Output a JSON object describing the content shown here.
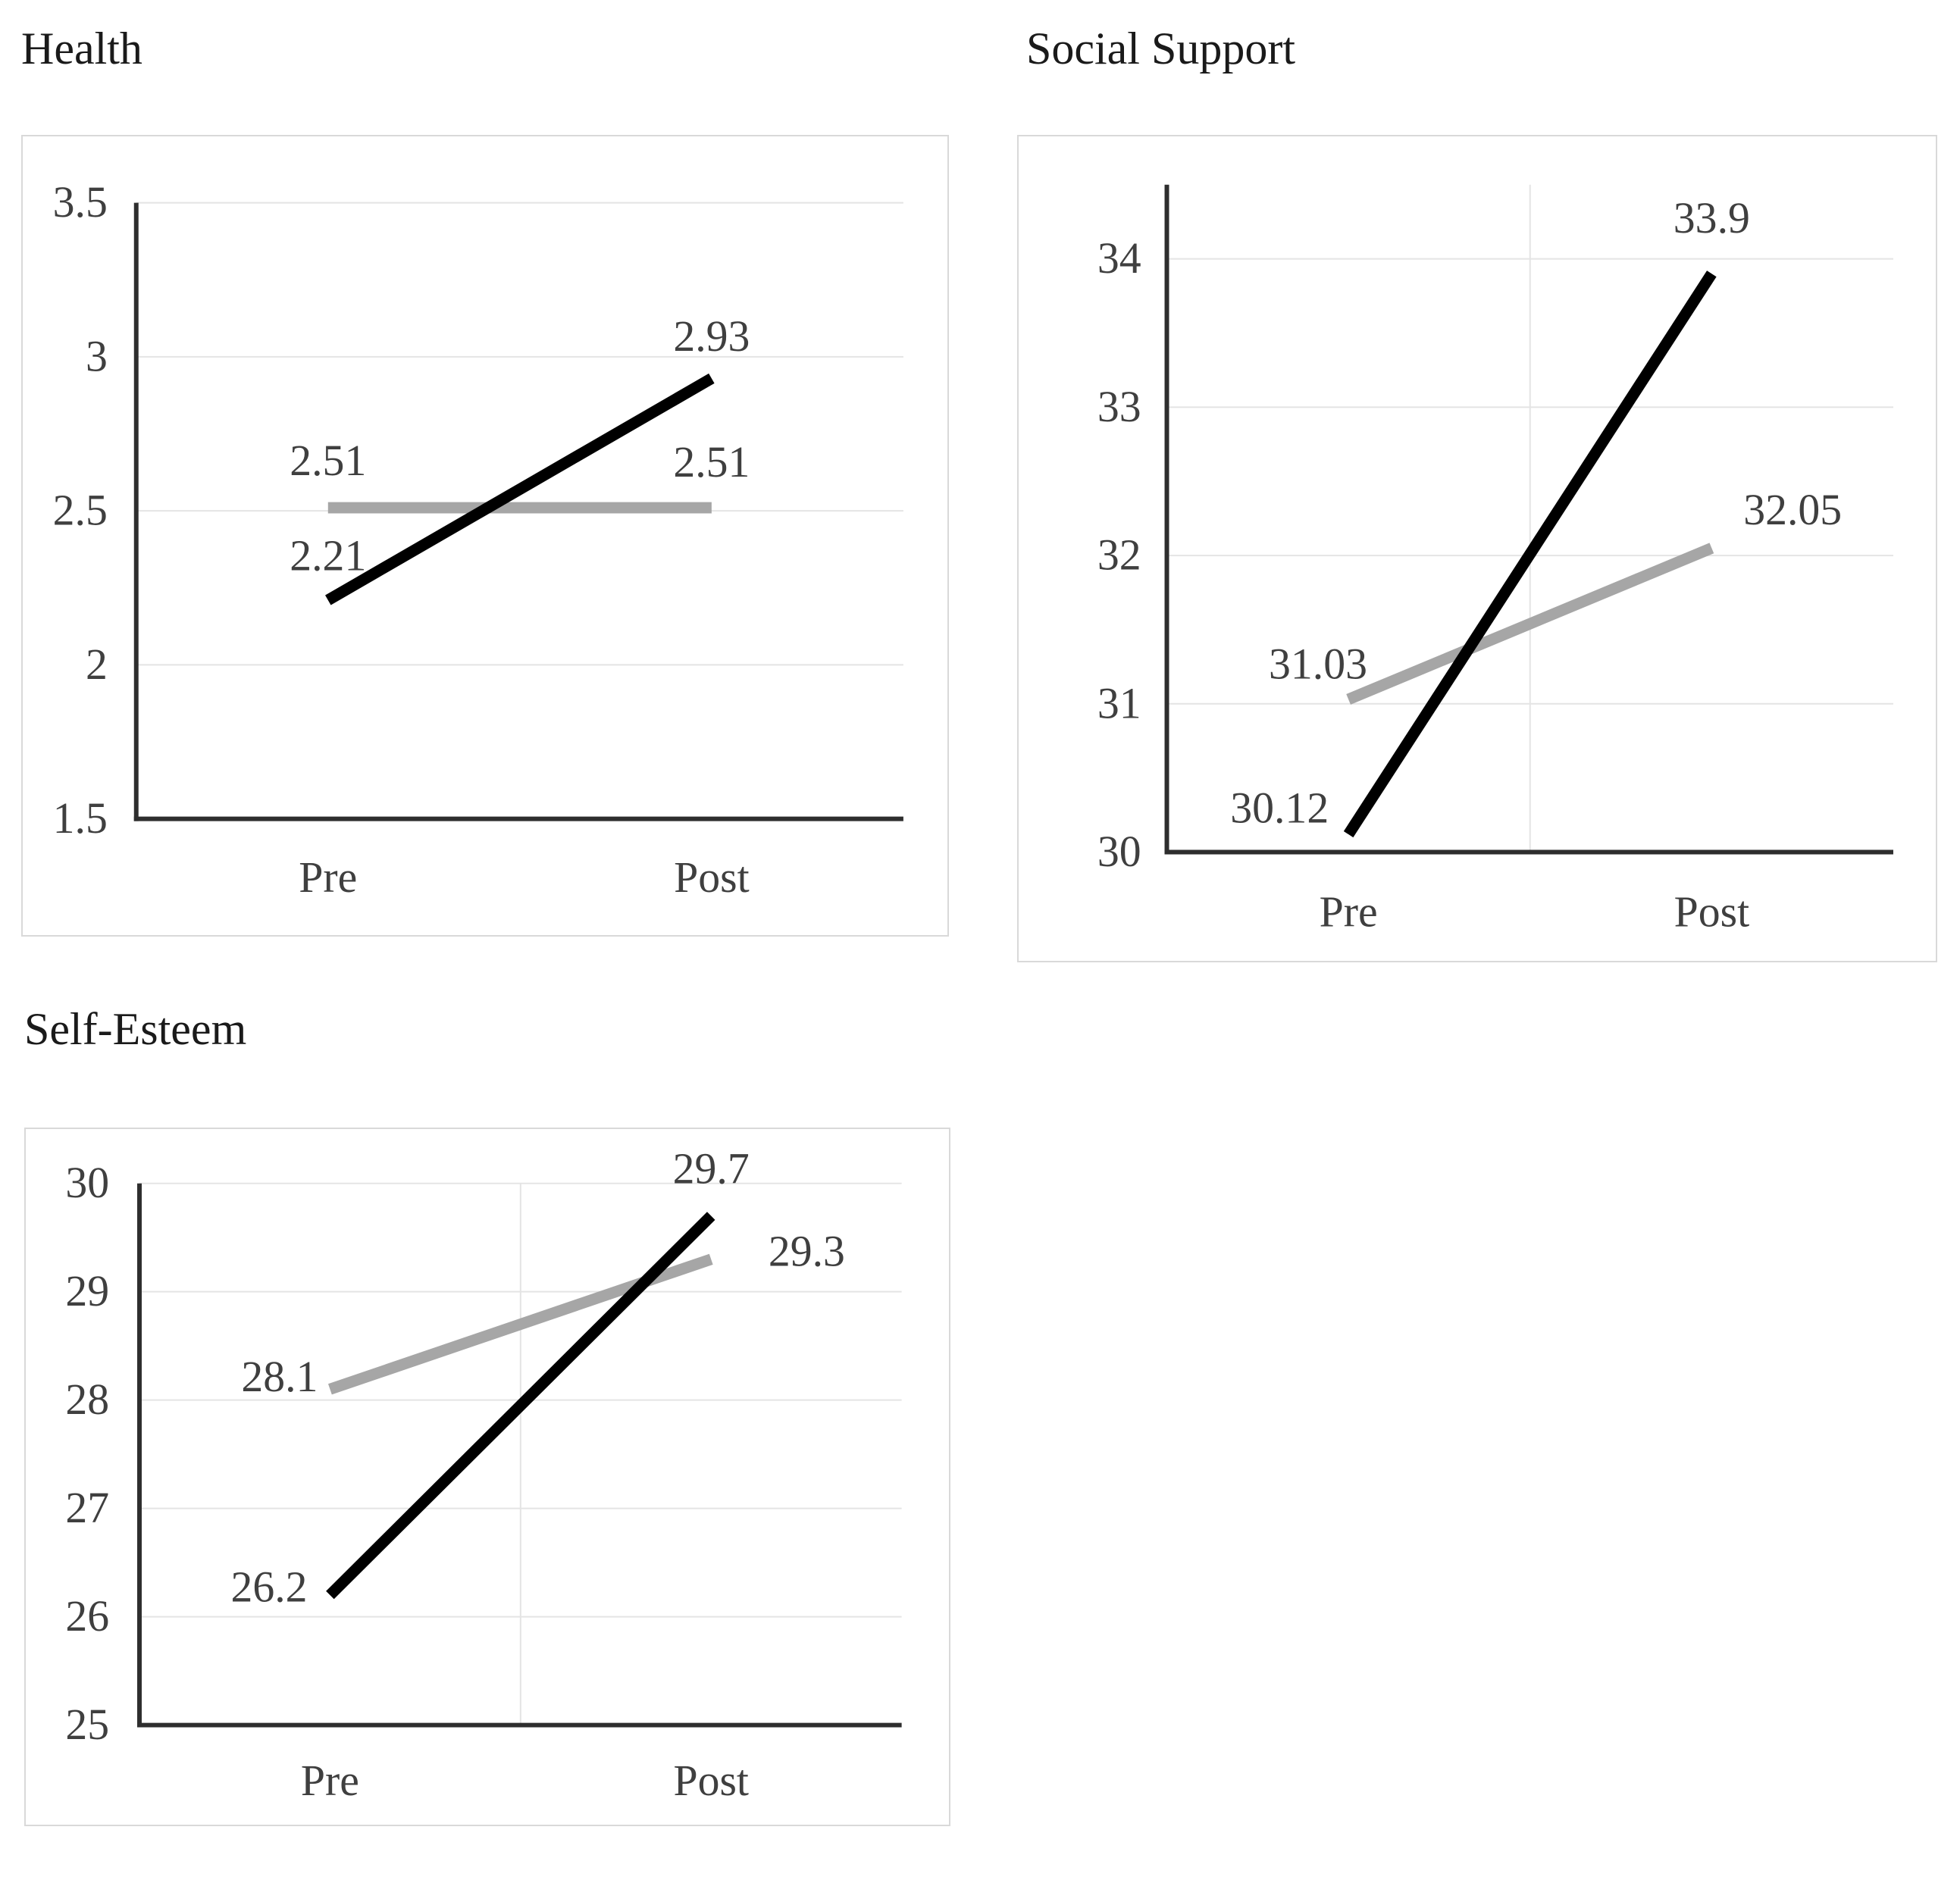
{
  "page": {
    "background": "#ffffff"
  },
  "styles": {
    "series_black": "#000000",
    "series_gray": "#a6a6a6",
    "gridline_color": "#e4e4e4",
    "axis_color": "#2e2e2e",
    "label_color": "#3f3f3f",
    "title_color": "#1a1a1a",
    "chart_border_color": "#d9d9d9",
    "background": "#ffffff"
  },
  "charts": [
    {
      "id": "health",
      "title": "Health",
      "chart_data": {
        "type": "line",
        "categories": [
          "Pre",
          "Post"
        ],
        "series": [
          {
            "name": "series-1-black",
            "color_key": "series_black",
            "values": [
              2.21,
              2.93
            ],
            "point_labels": [
              "2.21",
              "2.93"
            ]
          },
          {
            "name": "series-2-gray",
            "color_key": "series_gray",
            "values": [
              2.51,
              2.51
            ],
            "point_labels": [
              "2.51",
              "2.51"
            ]
          }
        ],
        "ylim": [
          1.5,
          3.5
        ],
        "yticks": [
          3.5,
          3,
          2.5,
          2,
          1.5
        ],
        "ytick_labels": [
          "3.5",
          "3",
          "2.5",
          "2",
          "1.5"
        ],
        "grid_y": [
          3.5,
          3,
          2.5,
          2
        ],
        "grid_vertical_center": false,
        "legend": "none",
        "xlabel": "",
        "ylabel": ""
      }
    },
    {
      "id": "social-support",
      "title": "Social Support",
      "chart_data": {
        "type": "line",
        "categories": [
          "Pre",
          "Post"
        ],
        "series": [
          {
            "name": "series-1-black",
            "color_key": "series_black",
            "values": [
              30.12,
              33.9
            ],
            "point_labels": [
              "30.12",
              "33.9"
            ]
          },
          {
            "name": "series-2-gray",
            "color_key": "series_gray",
            "values": [
              31.03,
              32.05
            ],
            "point_labels": [
              "31.03",
              "32.05"
            ]
          }
        ],
        "ylim": [
          30,
          34.5
        ],
        "yticks": [
          34,
          33,
          32,
          31,
          30
        ],
        "ytick_labels": [
          "34",
          "33",
          "32",
          "31",
          "30"
        ],
        "grid_y": [
          34,
          33,
          32,
          31
        ],
        "grid_vertical_center": true,
        "legend": "none",
        "xlabel": "",
        "ylabel": ""
      }
    },
    {
      "id": "self-esteem",
      "title": "Self-Esteem",
      "chart_data": {
        "type": "line",
        "categories": [
          "Pre",
          "Post"
        ],
        "series": [
          {
            "name": "series-1-black",
            "color_key": "series_black",
            "values": [
              26.2,
              29.7
            ],
            "point_labels": [
              "26.2",
              "29.7"
            ]
          },
          {
            "name": "series-2-gray",
            "color_key": "series_gray",
            "values": [
              28.1,
              29.3
            ],
            "point_labels": [
              "28.1",
              "29.3"
            ]
          }
        ],
        "ylim": [
          25,
          30
        ],
        "yticks": [
          30,
          29,
          28,
          27,
          26,
          25
        ],
        "ytick_labels": [
          "30",
          "29",
          "28",
          "27",
          "26",
          "25"
        ],
        "grid_y": [
          30,
          29,
          28,
          27,
          26
        ],
        "grid_vertical_center": true,
        "legend": "none",
        "xlabel": "",
        "ylabel": ""
      }
    }
  ]
}
